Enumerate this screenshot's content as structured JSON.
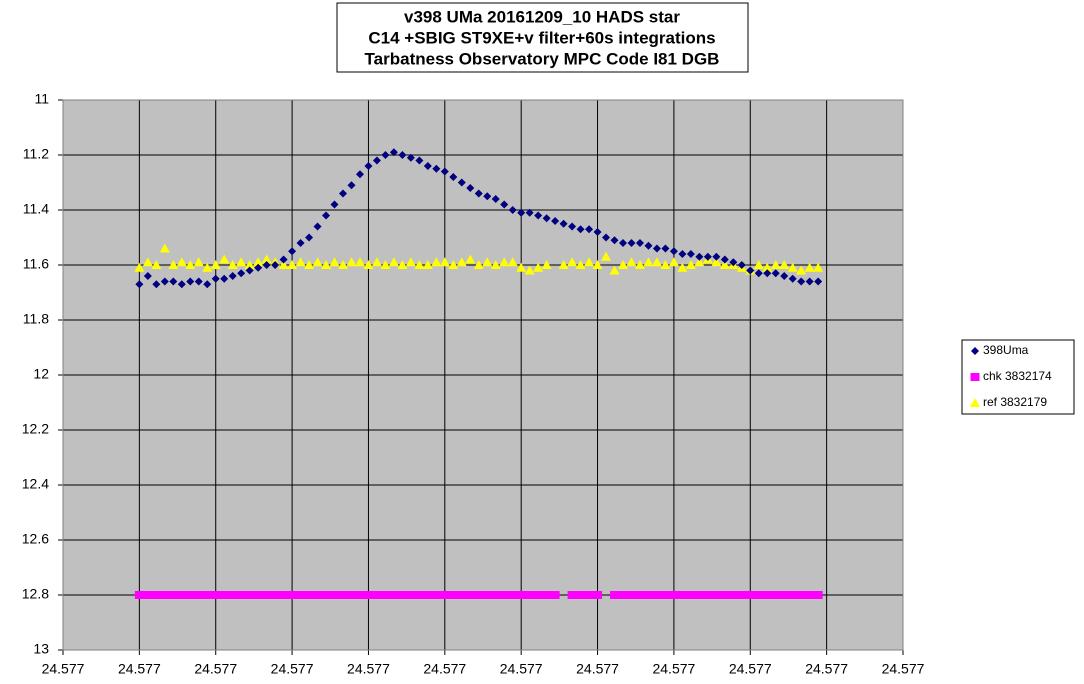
{
  "chart_data": {
    "type": "scatter",
    "title": [
      "v398 UMa 20161209_10 HADS star",
      "C14 +SBIG ST9XE+v filter+60s integrations",
      "Tarbatness Observatory  MPC Code I81 DGB"
    ],
    "xlim": [
      24.57652,
      24.57751
    ],
    "xticks": [
      {
        "value": 24.57652,
        "label": "24.577"
      },
      {
        "value": 24.57661,
        "label": "24.577"
      },
      {
        "value": 24.5767,
        "label": "24.577"
      },
      {
        "value": 24.57679,
        "label": "24.577"
      },
      {
        "value": 24.57688,
        "label": "24.577"
      },
      {
        "value": 24.57697,
        "label": "24.577"
      },
      {
        "value": 24.57706,
        "label": "24.577"
      },
      {
        "value": 24.57715,
        "label": "24.577"
      },
      {
        "value": 24.57724,
        "label": "24.577"
      },
      {
        "value": 24.57733,
        "label": "24.577"
      },
      {
        "value": 24.57742,
        "label": "24.577"
      },
      {
        "value": 24.57751,
        "label": "24.577"
      }
    ],
    "ylim": [
      11,
      13
    ],
    "y_inverted": true,
    "yticks": [
      11,
      11.2,
      11.4,
      11.6,
      11.8,
      12,
      12.2,
      12.4,
      12.6,
      12.8,
      13
    ],
    "grid": true,
    "legend": "right",
    "x": [
      24.57661,
      24.57662,
      24.57663,
      24.57664,
      24.57665,
      24.57666,
      24.57667,
      24.57668,
      24.57669,
      24.5767,
      24.57671,
      24.57672,
      24.57673,
      24.57674,
      24.57675,
      24.57676,
      24.57677,
      24.57678,
      24.57679,
      24.5768,
      24.57681,
      24.57682,
      24.57683,
      24.57684,
      24.57685,
      24.57686,
      24.57687,
      24.57688,
      24.57689,
      24.5769,
      24.57691,
      24.57692,
      24.57693,
      24.57694,
      24.57695,
      24.57696,
      24.57697,
      24.57698,
      24.57699,
      24.577,
      24.57701,
      24.57702,
      24.57703,
      24.57704,
      24.57705,
      24.57706,
      24.57707,
      24.57708,
      24.57709,
      24.5771,
      24.57711,
      24.57712,
      24.57713,
      24.57714,
      24.57715,
      24.57716,
      24.57717,
      24.57718,
      24.57719,
      24.5772,
      24.57721,
      24.57722,
      24.57723,
      24.57724,
      24.57725,
      24.57726,
      24.57727,
      24.57728,
      24.57729,
      24.5773,
      24.57731,
      24.57732,
      24.57733,
      24.57734,
      24.57735,
      24.57736,
      24.57737,
      24.57738,
      24.57739,
      24.5774,
      24.57741
    ],
    "series": [
      {
        "name": "398Uma",
        "color": "#000080",
        "marker": "diamond",
        "values": [
          11.67,
          11.64,
          11.67,
          11.66,
          11.66,
          11.67,
          11.66,
          11.66,
          11.67,
          11.65,
          11.65,
          11.64,
          11.63,
          11.62,
          11.61,
          11.6,
          11.6,
          11.58,
          11.55,
          11.52,
          11.5,
          11.46,
          11.42,
          11.38,
          11.34,
          11.31,
          11.27,
          11.24,
          11.22,
          11.2,
          11.19,
          11.2,
          11.21,
          11.22,
          11.24,
          11.25,
          11.26,
          11.28,
          11.3,
          11.32,
          11.34,
          11.35,
          11.36,
          11.38,
          11.4,
          11.41,
          11.41,
          11.42,
          11.43,
          11.44,
          11.45,
          11.46,
          11.47,
          11.47,
          11.48,
          11.5,
          11.51,
          11.52,
          11.52,
          11.52,
          11.53,
          11.54,
          11.54,
          11.55,
          11.56,
          11.56,
          11.57,
          11.57,
          11.57,
          11.58,
          11.59,
          11.6,
          11.62,
          11.63,
          11.63,
          11.63,
          11.64,
          11.65,
          11.66,
          11.66,
          11.66
        ]
      },
      {
        "name": "chk 3832174",
        "color": "#ff00ff",
        "marker": "square",
        "values": [
          12.8,
          12.8,
          12.8,
          12.8,
          12.8,
          12.8,
          12.8,
          12.8,
          12.8,
          12.8,
          12.8,
          12.8,
          12.8,
          12.8,
          12.8,
          12.8,
          12.8,
          12.8,
          12.8,
          12.8,
          12.8,
          12.8,
          12.8,
          12.8,
          12.8,
          12.8,
          12.8,
          12.8,
          12.8,
          12.8,
          12.8,
          12.8,
          12.8,
          12.8,
          12.8,
          12.8,
          12.8,
          12.8,
          12.8,
          12.8,
          12.8,
          12.8,
          12.8,
          12.8,
          12.8,
          12.8,
          12.8,
          12.8,
          12.8,
          12.8,
          null,
          12.8,
          12.8,
          12.8,
          12.8,
          null,
          12.8,
          12.8,
          12.8,
          12.8,
          12.8,
          12.8,
          12.8,
          12.8,
          12.8,
          12.8,
          12.8,
          12.8,
          12.8,
          12.8,
          12.8,
          12.8,
          12.8,
          12.8,
          12.8,
          12.8,
          12.8,
          12.8,
          12.8,
          12.8,
          12.8
        ]
      },
      {
        "name": "ref 3832179",
        "color": "#ffff00",
        "marker": "triangle",
        "values": [
          11.61,
          11.59,
          11.6,
          11.54,
          11.6,
          11.59,
          11.6,
          11.59,
          11.61,
          11.6,
          11.58,
          11.6,
          11.59,
          11.6,
          11.59,
          11.58,
          11.59,
          11.6,
          11.6,
          11.59,
          11.6,
          11.59,
          11.6,
          11.59,
          11.6,
          11.59,
          11.59,
          11.6,
          11.59,
          11.6,
          11.59,
          11.6,
          11.59,
          11.6,
          11.6,
          11.59,
          11.59,
          11.6,
          11.59,
          11.58,
          11.6,
          11.59,
          11.6,
          11.59,
          11.59,
          11.61,
          11.62,
          11.61,
          11.6,
          null,
          11.6,
          11.59,
          11.6,
          11.59,
          11.6,
          11.57,
          11.62,
          11.6,
          11.59,
          11.6,
          11.59,
          11.59,
          11.6,
          11.59,
          11.61,
          11.6,
          11.59,
          11.58,
          11.59,
          11.6,
          11.6,
          11.61,
          11.62,
          11.6,
          11.61,
          11.6,
          11.6,
          11.61,
          11.62,
          11.61,
          11.61
        ]
      }
    ]
  }
}
